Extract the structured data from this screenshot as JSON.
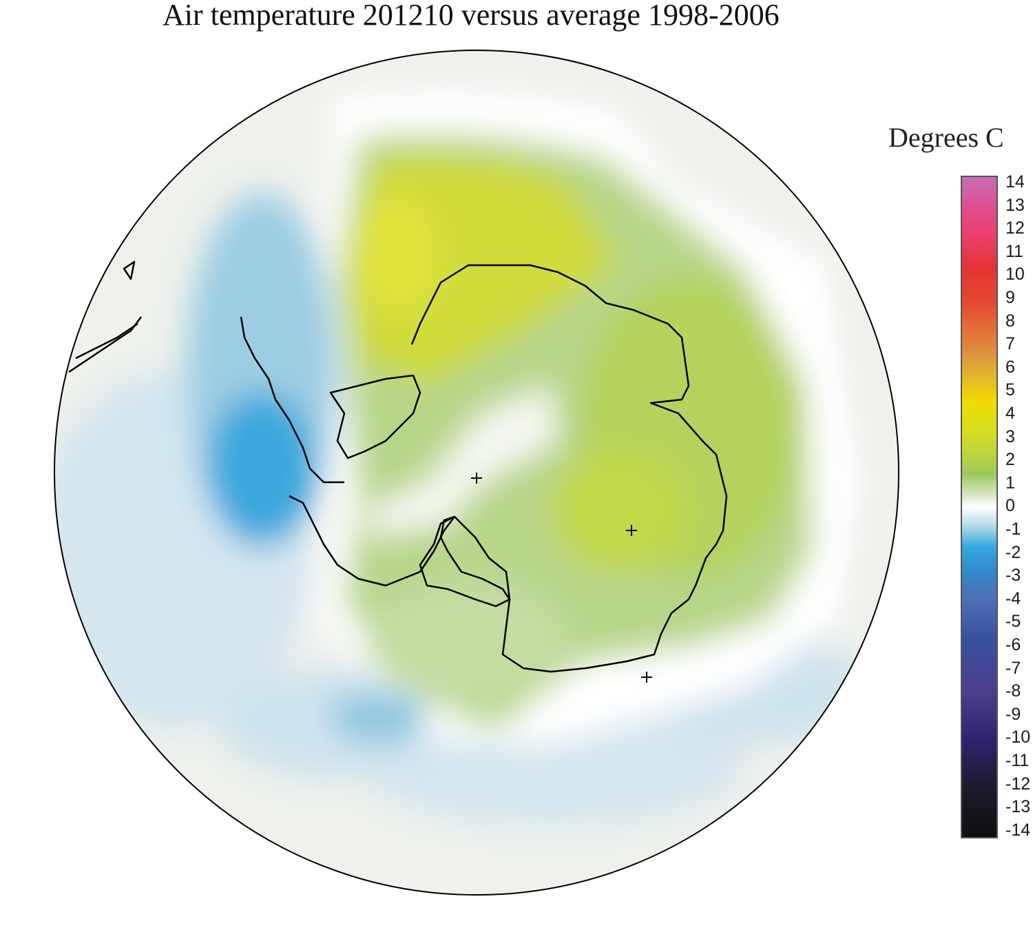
{
  "title": "Air temperature 201210 versus average 1998-2006",
  "legend": {
    "title": "Degrees C",
    "ticks": [
      "14",
      "13",
      "12",
      "11",
      "10",
      "9",
      "8",
      "7",
      "6",
      "5",
      "4",
      "3",
      "2",
      "1",
      "0",
      "-1",
      "-2",
      "-3",
      "-4",
      "-5",
      "-6",
      "-7",
      "-8",
      "-9",
      "-10",
      "-11",
      "-12",
      "-13",
      "-14"
    ]
  },
  "colors": {
    "c14": "#c66fb4",
    "c13": "#e04d8c",
    "c12": "#ea3f6c",
    "c11": "#e9323f",
    "c10": "#e33532",
    "c9": "#e34934",
    "c8": "#e46d38",
    "c7": "#dc9440",
    "c6": "#e5bd22",
    "c5": "#f1db00",
    "c4": "#d9e01f",
    "c3": "#bcd43e",
    "c2": "#9bc95b",
    "c1": "#d6e4c1",
    "c0": "#ffffff",
    "cm1": "#aed8e7",
    "cm2": "#35a8df",
    "cm3": "#3388c9",
    "cm4": "#4f6fb2",
    "cm5": "#415a9f",
    "cm6": "#38519c",
    "cm7": "#3a4790",
    "cm8": "#4c3e8c",
    "cm9": "#3d2d80",
    "cm10": "#2f2570",
    "cm11": "#2b1f5f",
    "cm12": "#1c1b2f",
    "cm13": "#141414",
    "cm14": "#101010"
  },
  "map": {
    "projection": "south polar stereographic",
    "markers": [
      "+",
      "+",
      "+"
    ]
  }
}
